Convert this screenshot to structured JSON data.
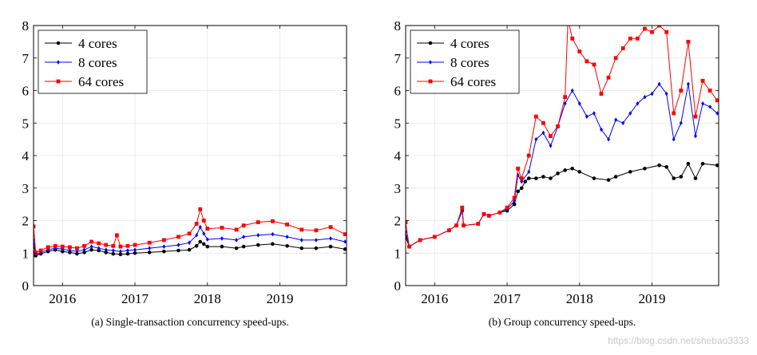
{
  "chart_data": [
    {
      "type": "line",
      "caption": "(a) Single-transaction concurrency speed-ups.",
      "xlim": [
        2015.6,
        2019.92
      ],
      "ylim": [
        0,
        8
      ],
      "xticks": [
        2016,
        2017,
        2018,
        2019
      ],
      "yticks": [
        0,
        1,
        2,
        3,
        4,
        5,
        6,
        7,
        8
      ],
      "legend_position": "top-left",
      "grid": true,
      "series": [
        {
          "name": "4 cores",
          "color": "#000000",
          "marker": "circle",
          "points": [
            [
              2015.6,
              1.28
            ],
            [
              2015.63,
              0.92
            ],
            [
              2015.7,
              0.98
            ],
            [
              2015.8,
              1.05
            ],
            [
              2015.9,
              1.1
            ],
            [
              2016.0,
              1.05
            ],
            [
              2016.1,
              1.02
            ],
            [
              2016.2,
              0.98
            ],
            [
              2016.3,
              1.02
            ],
            [
              2016.4,
              1.1
            ],
            [
              2016.5,
              1.08
            ],
            [
              2016.6,
              1.02
            ],
            [
              2016.7,
              0.98
            ],
            [
              2016.8,
              0.96
            ],
            [
              2016.9,
              0.98
            ],
            [
              2017.0,
              1.0
            ],
            [
              2017.2,
              1.02
            ],
            [
              2017.4,
              1.05
            ],
            [
              2017.6,
              1.08
            ],
            [
              2017.75,
              1.1
            ],
            [
              2017.85,
              1.22
            ],
            [
              2017.9,
              1.35
            ],
            [
              2017.95,
              1.28
            ],
            [
              2018.0,
              1.2
            ],
            [
              2018.2,
              1.2
            ],
            [
              2018.4,
              1.15
            ],
            [
              2018.5,
              1.2
            ],
            [
              2018.7,
              1.25
            ],
            [
              2018.9,
              1.28
            ],
            [
              2019.1,
              1.22
            ],
            [
              2019.3,
              1.15
            ],
            [
              2019.5,
              1.15
            ],
            [
              2019.7,
              1.2
            ],
            [
              2019.9,
              1.12
            ]
          ]
        },
        {
          "name": "8 cores",
          "color": "#0000ff",
          "marker": "diamond",
          "points": [
            [
              2015.6,
              1.4
            ],
            [
              2015.63,
              0.96
            ],
            [
              2015.7,
              1.02
            ],
            [
              2015.8,
              1.1
            ],
            [
              2015.9,
              1.15
            ],
            [
              2016.0,
              1.12
            ],
            [
              2016.1,
              1.08
            ],
            [
              2016.2,
              1.05
            ],
            [
              2016.3,
              1.1
            ],
            [
              2016.4,
              1.2
            ],
            [
              2016.5,
              1.15
            ],
            [
              2016.6,
              1.1
            ],
            [
              2016.7,
              1.08
            ],
            [
              2016.8,
              1.05
            ],
            [
              2016.9,
              1.08
            ],
            [
              2017.0,
              1.1
            ],
            [
              2017.2,
              1.15
            ],
            [
              2017.4,
              1.2
            ],
            [
              2017.6,
              1.25
            ],
            [
              2017.75,
              1.32
            ],
            [
              2017.85,
              1.55
            ],
            [
              2017.9,
              1.8
            ],
            [
              2017.95,
              1.6
            ],
            [
              2018.0,
              1.42
            ],
            [
              2018.2,
              1.45
            ],
            [
              2018.4,
              1.4
            ],
            [
              2018.5,
              1.5
            ],
            [
              2018.7,
              1.55
            ],
            [
              2018.9,
              1.58
            ],
            [
              2019.1,
              1.5
            ],
            [
              2019.3,
              1.4
            ],
            [
              2019.5,
              1.4
            ],
            [
              2019.7,
              1.45
            ],
            [
              2019.9,
              1.35
            ]
          ]
        },
        {
          "name": "64 cores",
          "color": "#ff0000",
          "marker": "square",
          "points": [
            [
              2015.6,
              1.82
            ],
            [
              2015.63,
              1.02
            ],
            [
              2015.7,
              1.08
            ],
            [
              2015.8,
              1.18
            ],
            [
              2015.9,
              1.22
            ],
            [
              2016.0,
              1.2
            ],
            [
              2016.1,
              1.18
            ],
            [
              2016.2,
              1.15
            ],
            [
              2016.3,
              1.22
            ],
            [
              2016.4,
              1.35
            ],
            [
              2016.5,
              1.3
            ],
            [
              2016.6,
              1.25
            ],
            [
              2016.7,
              1.22
            ],
            [
              2016.75,
              1.55
            ],
            [
              2016.8,
              1.2
            ],
            [
              2016.9,
              1.22
            ],
            [
              2017.0,
              1.25
            ],
            [
              2017.2,
              1.32
            ],
            [
              2017.4,
              1.4
            ],
            [
              2017.6,
              1.5
            ],
            [
              2017.75,
              1.6
            ],
            [
              2017.85,
              1.9
            ],
            [
              2017.9,
              2.35
            ],
            [
              2017.95,
              2.0
            ],
            [
              2018.0,
              1.75
            ],
            [
              2018.2,
              1.78
            ],
            [
              2018.4,
              1.72
            ],
            [
              2018.5,
              1.85
            ],
            [
              2018.7,
              1.95
            ],
            [
              2018.9,
              1.98
            ],
            [
              2019.1,
              1.88
            ],
            [
              2019.3,
              1.72
            ],
            [
              2019.5,
              1.7
            ],
            [
              2019.7,
              1.8
            ],
            [
              2019.9,
              1.58
            ]
          ]
        }
      ]
    },
    {
      "type": "line",
      "caption": "(b) Group concurrency speed-ups.",
      "xlim": [
        2015.6,
        2019.92
      ],
      "ylim": [
        0,
        8
      ],
      "xticks": [
        2016,
        2017,
        2018,
        2019
      ],
      "yticks": [
        0,
        1,
        2,
        3,
        4,
        5,
        6,
        7,
        8
      ],
      "legend_position": "top-left",
      "grid": true,
      "series": [
        {
          "name": "4 cores",
          "color": "#000000",
          "marker": "circle",
          "points": [
            [
              2015.6,
              1.5
            ],
            [
              2015.65,
              1.2
            ],
            [
              2015.8,
              1.4
            ],
            [
              2016.0,
              1.5
            ],
            [
              2016.2,
              1.7
            ],
            [
              2016.3,
              1.85
            ],
            [
              2016.38,
              2.3
            ],
            [
              2016.4,
              1.85
            ],
            [
              2016.6,
              1.9
            ],
            [
              2016.68,
              2.2
            ],
            [
              2016.75,
              2.15
            ],
            [
              2016.9,
              2.25
            ],
            [
              2017.0,
              2.3
            ],
            [
              2017.1,
              2.5
            ],
            [
              2017.15,
              2.9
            ],
            [
              2017.2,
              3.0
            ],
            [
              2017.25,
              3.2
            ],
            [
              2017.3,
              3.3
            ],
            [
              2017.4,
              3.3
            ],
            [
              2017.5,
              3.35
            ],
            [
              2017.6,
              3.3
            ],
            [
              2017.7,
              3.45
            ],
            [
              2017.8,
              3.55
            ],
            [
              2017.9,
              3.6
            ],
            [
              2018.0,
              3.5
            ],
            [
              2018.2,
              3.3
            ],
            [
              2018.4,
              3.25
            ],
            [
              2018.5,
              3.35
            ],
            [
              2018.7,
              3.5
            ],
            [
              2018.9,
              3.6
            ],
            [
              2019.1,
              3.7
            ],
            [
              2019.2,
              3.65
            ],
            [
              2019.3,
              3.3
            ],
            [
              2019.4,
              3.35
            ],
            [
              2019.5,
              3.75
            ],
            [
              2019.6,
              3.3
            ],
            [
              2019.7,
              3.75
            ],
            [
              2019.9,
              3.7
            ]
          ]
        },
        {
          "name": "8 cores",
          "color": "#0000ff",
          "marker": "diamond",
          "points": [
            [
              2015.6,
              1.65
            ],
            [
              2015.65,
              1.2
            ],
            [
              2015.8,
              1.4
            ],
            [
              2016.0,
              1.5
            ],
            [
              2016.2,
              1.7
            ],
            [
              2016.3,
              1.85
            ],
            [
              2016.38,
              2.3
            ],
            [
              2016.4,
              1.85
            ],
            [
              2016.6,
              1.9
            ],
            [
              2016.68,
              2.2
            ],
            [
              2016.75,
              2.15
            ],
            [
              2016.9,
              2.25
            ],
            [
              2017.0,
              2.35
            ],
            [
              2017.1,
              2.6
            ],
            [
              2017.15,
              3.4
            ],
            [
              2017.2,
              3.2
            ],
            [
              2017.3,
              3.5
            ],
            [
              2017.4,
              4.5
            ],
            [
              2017.5,
              4.7
            ],
            [
              2017.6,
              4.3
            ],
            [
              2017.7,
              4.9
            ],
            [
              2017.8,
              5.6
            ],
            [
              2017.9,
              6.0
            ],
            [
              2018.0,
              5.6
            ],
            [
              2018.1,
              5.2
            ],
            [
              2018.2,
              5.3
            ],
            [
              2018.3,
              4.8
            ],
            [
              2018.4,
              4.5
            ],
            [
              2018.5,
              5.1
            ],
            [
              2018.6,
              5.0
            ],
            [
              2018.7,
              5.3
            ],
            [
              2018.8,
              5.6
            ],
            [
              2018.9,
              5.8
            ],
            [
              2019.0,
              5.9
            ],
            [
              2019.1,
              6.2
            ],
            [
              2019.2,
              5.9
            ],
            [
              2019.3,
              4.5
            ],
            [
              2019.4,
              5.0
            ],
            [
              2019.5,
              6.2
            ],
            [
              2019.6,
              4.6
            ],
            [
              2019.7,
              5.6
            ],
            [
              2019.8,
              5.5
            ],
            [
              2019.9,
              5.3
            ]
          ]
        },
        {
          "name": "64 cores",
          "color": "#ff0000",
          "marker": "square",
          "points": [
            [
              2015.6,
              1.95
            ],
            [
              2015.65,
              1.2
            ],
            [
              2015.8,
              1.4
            ],
            [
              2016.0,
              1.5
            ],
            [
              2016.2,
              1.7
            ],
            [
              2016.3,
              1.85
            ],
            [
              2016.38,
              2.4
            ],
            [
              2016.4,
              1.85
            ],
            [
              2016.6,
              1.9
            ],
            [
              2016.68,
              2.2
            ],
            [
              2016.75,
              2.15
            ],
            [
              2016.9,
              2.25
            ],
            [
              2017.0,
              2.4
            ],
            [
              2017.1,
              2.7
            ],
            [
              2017.15,
              3.6
            ],
            [
              2017.2,
              3.3
            ],
            [
              2017.3,
              4.0
            ],
            [
              2017.4,
              5.2
            ],
            [
              2017.5,
              5.0
            ],
            [
              2017.6,
              4.6
            ],
            [
              2017.7,
              4.9
            ],
            [
              2017.8,
              5.8
            ],
            [
              2017.84,
              8.2
            ],
            [
              2017.9,
              7.6
            ],
            [
              2018.0,
              7.2
            ],
            [
              2018.1,
              6.9
            ],
            [
              2018.2,
              6.8
            ],
            [
              2018.3,
              5.9
            ],
            [
              2018.4,
              6.4
            ],
            [
              2018.5,
              7.0
            ],
            [
              2018.6,
              7.3
            ],
            [
              2018.7,
              7.6
            ],
            [
              2018.8,
              7.6
            ],
            [
              2018.9,
              7.9
            ],
            [
              2019.0,
              7.8
            ],
            [
              2019.1,
              8.0
            ],
            [
              2019.2,
              7.8
            ],
            [
              2019.3,
              5.3
            ],
            [
              2019.4,
              6.0
            ],
            [
              2019.5,
              7.5
            ],
            [
              2019.6,
              5.2
            ],
            [
              2019.7,
              6.3
            ],
            [
              2019.8,
              6.0
            ],
            [
              2019.9,
              5.7
            ]
          ]
        }
      ]
    }
  ],
  "watermark": "https://blog.csdn.net/shebao3333"
}
